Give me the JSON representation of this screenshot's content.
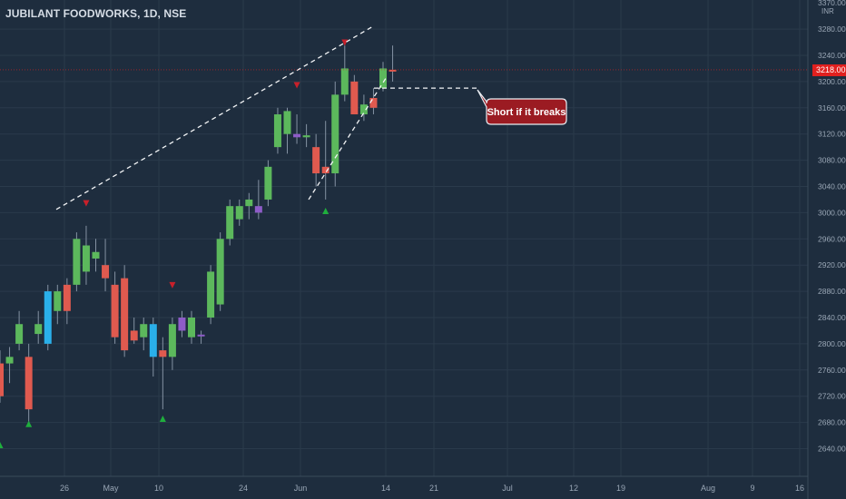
{
  "header": {
    "symbol_title": "JUBILANT FOODWORKS, 1D, NSE"
  },
  "price_axis": {
    "currency": "INR",
    "last_price_label": "3218.00",
    "ticks": [
      "3370.00",
      "3280.00",
      "3240.00",
      "3200.00",
      "3160.00",
      "3120.00",
      "3080.00",
      "3040.00",
      "3000.00",
      "2960.00",
      "2920.00",
      "2880.00",
      "2840.00",
      "2800.00",
      "2760.00",
      "2720.00",
      "2680.00",
      "2640.00"
    ]
  },
  "time_axis": {
    "ticks": [
      "26",
      "May",
      "10",
      "24",
      "Jun",
      "14",
      "21",
      "Jul",
      "12",
      "19",
      "Aug",
      "9",
      "16"
    ]
  },
  "annotation": {
    "callout_text": "Short if it breaks"
  },
  "colors": {
    "background": "#1e2d3e",
    "grid": "#2a3a4b",
    "up": "#5cb85c",
    "down": "#e05a4f",
    "blue_bar": "#2ab0ea",
    "purple_bar": "#8e5cc8",
    "callout_fill": "#9b1b22",
    "last_price": "#e0201f",
    "marker_down": "#c8202a",
    "marker_up": "#1fae3d"
  },
  "chart_data": {
    "type": "candlestick",
    "title": "JUBILANT FOODWORKS, 1D, NSE",
    "ylabel": "INR",
    "ylim": [
      2600,
      3375
    ],
    "grid": true,
    "x_tick_labels": [
      "26",
      "May",
      "10",
      "24",
      "Jun",
      "14",
      "21",
      "Jul",
      "12",
      "19",
      "Aug",
      "9",
      "16"
    ],
    "candles": [
      {
        "o": 2770,
        "h": 2790,
        "l": 2710,
        "c": 2720,
        "color": "down"
      },
      {
        "o": 2770,
        "h": 2795,
        "l": 2740,
        "c": 2780,
        "color": "up"
      },
      {
        "o": 2800,
        "h": 2850,
        "l": 2790,
        "c": 2830,
        "color": "up"
      },
      {
        "o": 2780,
        "h": 2800,
        "l": 2680,
        "c": 2700,
        "color": "down"
      },
      {
        "o": 2815,
        "h": 2850,
        "l": 2800,
        "c": 2830,
        "color": "up"
      },
      {
        "o": 2800,
        "h": 2890,
        "l": 2790,
        "c": 2880,
        "color": "blue"
      },
      {
        "o": 2850,
        "h": 2890,
        "l": 2830,
        "c": 2880,
        "color": "up"
      },
      {
        "o": 2890,
        "h": 2900,
        "l": 2830,
        "c": 2850,
        "color": "down"
      },
      {
        "o": 2890,
        "h": 2970,
        "l": 2880,
        "c": 2960,
        "color": "up"
      },
      {
        "o": 2910,
        "h": 2980,
        "l": 2890,
        "c": 2950,
        "color": "up"
      },
      {
        "o": 2930,
        "h": 2960,
        "l": 2910,
        "c": 2940,
        "color": "up"
      },
      {
        "o": 2920,
        "h": 2960,
        "l": 2880,
        "c": 2900,
        "color": "down"
      },
      {
        "o": 2890,
        "h": 2910,
        "l": 2800,
        "c": 2810,
        "color": "down"
      },
      {
        "o": 2900,
        "h": 2920,
        "l": 2780,
        "c": 2790,
        "color": "down"
      },
      {
        "o": 2820,
        "h": 2840,
        "l": 2800,
        "c": 2805,
        "color": "down"
      },
      {
        "o": 2810,
        "h": 2840,
        "l": 2790,
        "c": 2830,
        "color": "up"
      },
      {
        "o": 2780,
        "h": 2840,
        "l": 2750,
        "c": 2830,
        "color": "blue"
      },
      {
        "o": 2790,
        "h": 2810,
        "l": 2700,
        "c": 2780,
        "color": "down"
      },
      {
        "o": 2780,
        "h": 2840,
        "l": 2760,
        "c": 2830,
        "color": "up"
      },
      {
        "o": 2820,
        "h": 2850,
        "l": 2810,
        "c": 2840,
        "color": "purple"
      },
      {
        "o": 2810,
        "h": 2850,
        "l": 2800,
        "c": 2840,
        "color": "up"
      },
      {
        "o": 2812,
        "h": 2820,
        "l": 2800,
        "c": 2814,
        "color": "purple"
      },
      {
        "o": 2840,
        "h": 2920,
        "l": 2830,
        "c": 2910,
        "color": "up"
      },
      {
        "o": 2860,
        "h": 2970,
        "l": 2850,
        "c": 2960,
        "color": "up"
      },
      {
        "o": 2960,
        "h": 3020,
        "l": 2950,
        "c": 3010,
        "color": "up"
      },
      {
        "o": 2990,
        "h": 3020,
        "l": 2980,
        "c": 3010,
        "color": "up"
      },
      {
        "o": 3010,
        "h": 3030,
        "l": 2990,
        "c": 3020,
        "color": "up"
      },
      {
        "o": 3000,
        "h": 3050,
        "l": 2990,
        "c": 3010,
        "color": "purple"
      },
      {
        "o": 3020,
        "h": 3080,
        "l": 3010,
        "c": 3070,
        "color": "up"
      },
      {
        "o": 3100,
        "h": 3160,
        "l": 3090,
        "c": 3150,
        "color": "up"
      },
      {
        "o": 3120,
        "h": 3160,
        "l": 3090,
        "c": 3155,
        "color": "up"
      },
      {
        "o": 3120,
        "h": 3150,
        "l": 3105,
        "c": 3115,
        "color": "purple"
      },
      {
        "o": 3115,
        "h": 3135,
        "l": 3100,
        "c": 3118,
        "color": "up"
      },
      {
        "o": 3100,
        "h": 3120,
        "l": 3040,
        "c": 3060,
        "color": "down"
      },
      {
        "o": 3060,
        "h": 3140,
        "l": 3020,
        "c": 3070,
        "color": "down"
      },
      {
        "o": 3060,
        "h": 3200,
        "l": 3040,
        "c": 3180,
        "color": "up"
      },
      {
        "o": 3180,
        "h": 3255,
        "l": 3170,
        "c": 3220,
        "color": "up"
      },
      {
        "o": 3200,
        "h": 3210,
        "l": 3150,
        "c": 3150,
        "color": "down"
      },
      {
        "o": 3150,
        "h": 3180,
        "l": 3140,
        "c": 3165,
        "color": "up"
      },
      {
        "o": 3160,
        "h": 3190,
        "l": 3150,
        "c": 3175,
        "color": "down"
      },
      {
        "o": 3190,
        "h": 3230,
        "l": 3185,
        "c": 3220,
        "color": "up"
      },
      {
        "o": 3218,
        "h": 3255,
        "l": 3200,
        "c": 3218,
        "color": "down"
      }
    ],
    "signals": [
      {
        "candle": 3,
        "type": "up",
        "price": 2677
      },
      {
        "candle": 9,
        "type": "down",
        "price": 3015
      },
      {
        "candle": 17,
        "type": "up",
        "price": 2685
      },
      {
        "candle": 18,
        "type": "down",
        "price": 2890
      },
      {
        "candle": 31,
        "type": "down",
        "price": 3195
      },
      {
        "candle": 34,
        "type": "up",
        "price": 3002
      },
      {
        "candle": 36,
        "type": "down",
        "price": 3260
      }
    ],
    "trendlines": [
      {
        "from": {
          "x": "24",
          "y": 3000
        },
        "to": {
          "x": "Jun 11",
          "y": 3285
        }
      },
      {
        "from": {
          "x": "Jun 1",
          "y": 3010
        },
        "to": {
          "x": "Jun 14",
          "y": 3205
        }
      },
      {
        "from": {
          "x": "Jun 11",
          "y": 3190
        },
        "to": {
          "x": "Jun 24",
          "y": 3190
        }
      }
    ],
    "last_price": 3218
  }
}
